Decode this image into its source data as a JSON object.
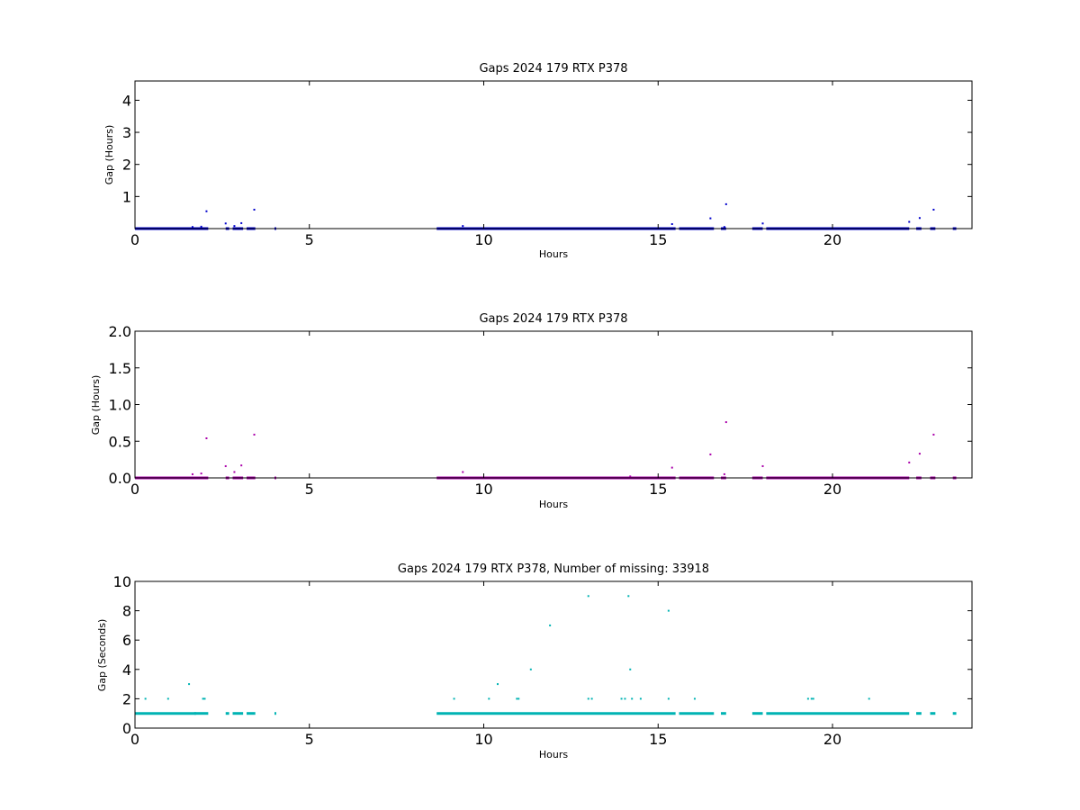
{
  "chart_data": [
    {
      "type": "scatter",
      "title": "Gaps 2024 179 RTX  P378",
      "xlabel": "Hours",
      "ylabel": "Gap (Hours)",
      "xlim": [
        0,
        24
      ],
      "ylim": [
        0,
        4.6
      ],
      "xticks": [
        0,
        5,
        10,
        15,
        20
      ],
      "yticks": [
        1,
        2,
        3,
        4
      ],
      "ytick_labels": [
        "1",
        "2",
        "3",
        "4"
      ],
      "color": "#0000cc",
      "baseline_value": 0.0,
      "baseline_segments": [
        [
          0.0,
          2.1
        ],
        [
          2.6,
          2.7
        ],
        [
          2.8,
          3.1
        ],
        [
          3.2,
          3.45
        ],
        [
          4.0,
          4.05
        ],
        [
          8.65,
          15.5
        ],
        [
          15.6,
          16.6
        ],
        [
          16.8,
          16.95
        ],
        [
          17.7,
          18.0
        ],
        [
          18.1,
          22.2
        ],
        [
          22.4,
          22.55
        ],
        [
          22.8,
          22.95
        ],
        [
          23.45,
          23.55
        ]
      ],
      "points": [
        [
          1.65,
          0.05
        ],
        [
          1.9,
          0.06
        ],
        [
          2.05,
          0.54
        ],
        [
          2.6,
          0.16
        ],
        [
          2.85,
          0.08
        ],
        [
          3.05,
          0.17
        ],
        [
          3.42,
          0.59
        ],
        [
          9.4,
          0.08
        ],
        [
          15.4,
          0.14
        ],
        [
          16.5,
          0.32
        ],
        [
          16.9,
          0.05
        ],
        [
          16.95,
          0.76
        ],
        [
          18.0,
          0.16
        ],
        [
          22.2,
          0.21
        ],
        [
          22.5,
          0.33
        ],
        [
          22.9,
          0.59
        ]
      ]
    },
    {
      "type": "scatter",
      "title": "Gaps 2024 179 RTX  P378",
      "xlabel": "Hours",
      "ylabel": "Gap (Hours)",
      "xlim": [
        0,
        24
      ],
      "ylim": [
        0,
        2.0
      ],
      "xticks": [
        0,
        5,
        10,
        15,
        20
      ],
      "yticks": [
        0,
        0.5,
        1.0,
        1.5,
        2.0
      ],
      "ytick_labels": [
        "0.0",
        "0.5",
        "1.0",
        "1.5",
        "2.0"
      ],
      "color": "#aa00aa",
      "baseline_value": 0.0,
      "baseline_segments": [
        [
          0.0,
          2.1
        ],
        [
          2.6,
          2.7
        ],
        [
          2.8,
          3.1
        ],
        [
          3.2,
          3.45
        ],
        [
          4.0,
          4.05
        ],
        [
          8.65,
          15.5
        ],
        [
          15.6,
          16.6
        ],
        [
          16.8,
          16.95
        ],
        [
          17.7,
          18.0
        ],
        [
          18.1,
          22.2
        ],
        [
          22.4,
          22.55
        ],
        [
          22.8,
          22.95
        ],
        [
          23.45,
          23.55
        ]
      ],
      "points": [
        [
          1.65,
          0.05
        ],
        [
          1.9,
          0.06
        ],
        [
          2.05,
          0.54
        ],
        [
          2.6,
          0.16
        ],
        [
          2.85,
          0.08
        ],
        [
          3.05,
          0.17
        ],
        [
          3.42,
          0.59
        ],
        [
          9.4,
          0.08
        ],
        [
          14.2,
          0.02
        ],
        [
          15.4,
          0.14
        ],
        [
          16.5,
          0.32
        ],
        [
          16.9,
          0.05
        ],
        [
          16.95,
          0.76
        ],
        [
          18.0,
          0.16
        ],
        [
          22.2,
          0.21
        ],
        [
          22.5,
          0.33
        ],
        [
          22.9,
          0.59
        ]
      ]
    },
    {
      "type": "scatter",
      "title": "Gaps 2024 179 RTX  P378, Number of missing: 33918",
      "xlabel": "Hours",
      "ylabel": "Gap (Seconds)",
      "xlim": [
        0,
        24
      ],
      "ylim": [
        0,
        10
      ],
      "xticks": [
        0,
        5,
        10,
        15,
        20
      ],
      "yticks": [
        0,
        2,
        4,
        6,
        8,
        10
      ],
      "ytick_labels": [
        "0",
        "2",
        "4",
        "6",
        "8",
        "10"
      ],
      "color": "#00b3b3",
      "baseline_value": 1.0,
      "baseline_segments": [
        [
          0.0,
          1.75
        ],
        [
          1.7,
          2.1
        ],
        [
          2.6,
          2.7
        ],
        [
          2.8,
          3.1
        ],
        [
          3.2,
          3.45
        ],
        [
          4.0,
          4.05
        ],
        [
          8.65,
          15.5
        ],
        [
          15.6,
          16.6
        ],
        [
          16.8,
          16.95
        ],
        [
          17.7,
          18.0
        ],
        [
          18.1,
          22.2
        ],
        [
          22.4,
          22.55
        ],
        [
          22.8,
          22.95
        ],
        [
          23.45,
          23.55
        ]
      ],
      "points": [
        [
          0.3,
          2
        ],
        [
          0.95,
          2
        ],
        [
          1.55,
          3
        ],
        [
          1.95,
          2
        ],
        [
          2.0,
          2
        ],
        [
          9.15,
          2
        ],
        [
          10.15,
          2
        ],
        [
          10.4,
          3
        ],
        [
          10.95,
          2
        ],
        [
          11.0,
          2
        ],
        [
          11.35,
          4
        ],
        [
          11.9,
          7
        ],
        [
          13.0,
          9
        ],
        [
          13.0,
          2
        ],
        [
          13.1,
          2
        ],
        [
          13.95,
          2
        ],
        [
          14.05,
          2
        ],
        [
          14.15,
          9
        ],
        [
          14.2,
          4
        ],
        [
          14.25,
          2
        ],
        [
          14.5,
          2
        ],
        [
          15.3,
          8
        ],
        [
          15.3,
          2
        ],
        [
          16.05,
          2
        ],
        [
          19.3,
          2
        ],
        [
          19.4,
          2
        ],
        [
          19.45,
          2
        ],
        [
          21.05,
          2
        ]
      ]
    }
  ]
}
